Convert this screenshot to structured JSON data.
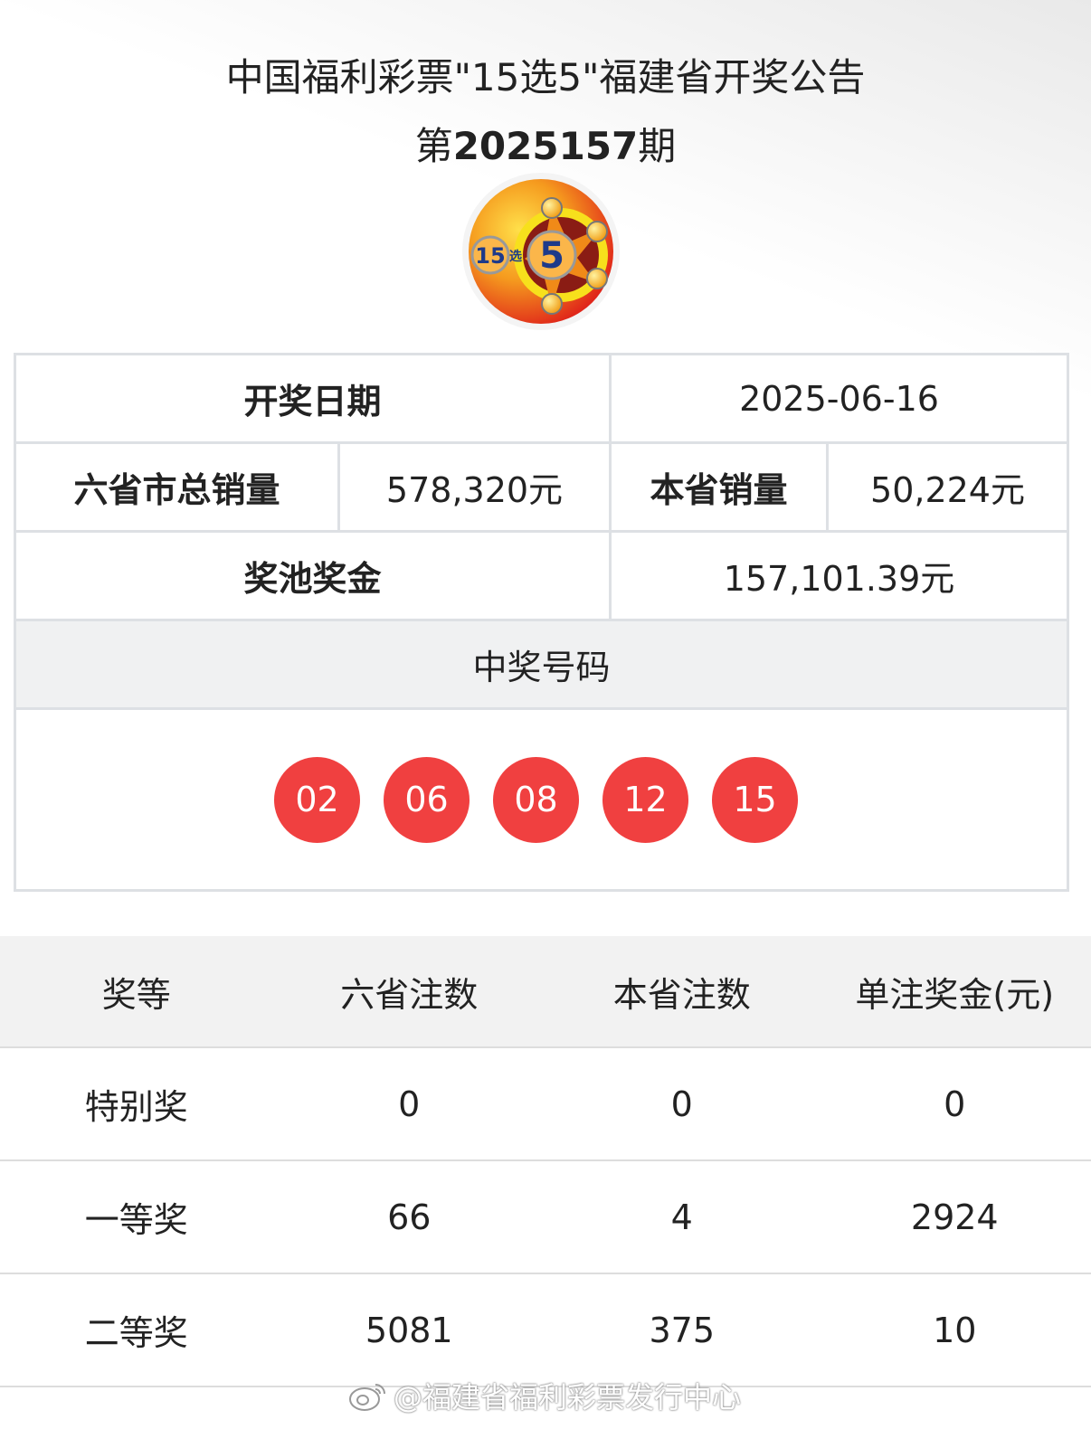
{
  "header": {
    "title": "中国福利彩票\"15选5\"福建省开奖公告",
    "issue_prefix": "第",
    "issue_number": "2025157",
    "issue_suffix": "期"
  },
  "logo": {
    "text": "15选5"
  },
  "info": {
    "draw_date_label": "开奖日期",
    "draw_date": "2025-06-16",
    "total_sales_label": "六省市总销量",
    "total_sales": "578,320元",
    "province_sales_label": "本省销量",
    "province_sales": "50,224元",
    "pool_label": "奖池奖金",
    "pool": "157,101.39元",
    "numbers_label": "中奖号码",
    "numbers": [
      "02",
      "06",
      "08",
      "12",
      "15"
    ]
  },
  "prizes": {
    "headers": [
      "奖等",
      "六省注数",
      "本省注数",
      "单注奖金(元)"
    ],
    "rows": [
      [
        "特别奖",
        "0",
        "0",
        "0"
      ],
      [
        "一等奖",
        "66",
        "4",
        "2924"
      ],
      [
        "二等奖",
        "5081",
        "375",
        "10"
      ]
    ]
  },
  "watermark": "@福建省福利彩票发行中心",
  "colors": {
    "ball": "#f04040",
    "border": "#dde0e4"
  }
}
